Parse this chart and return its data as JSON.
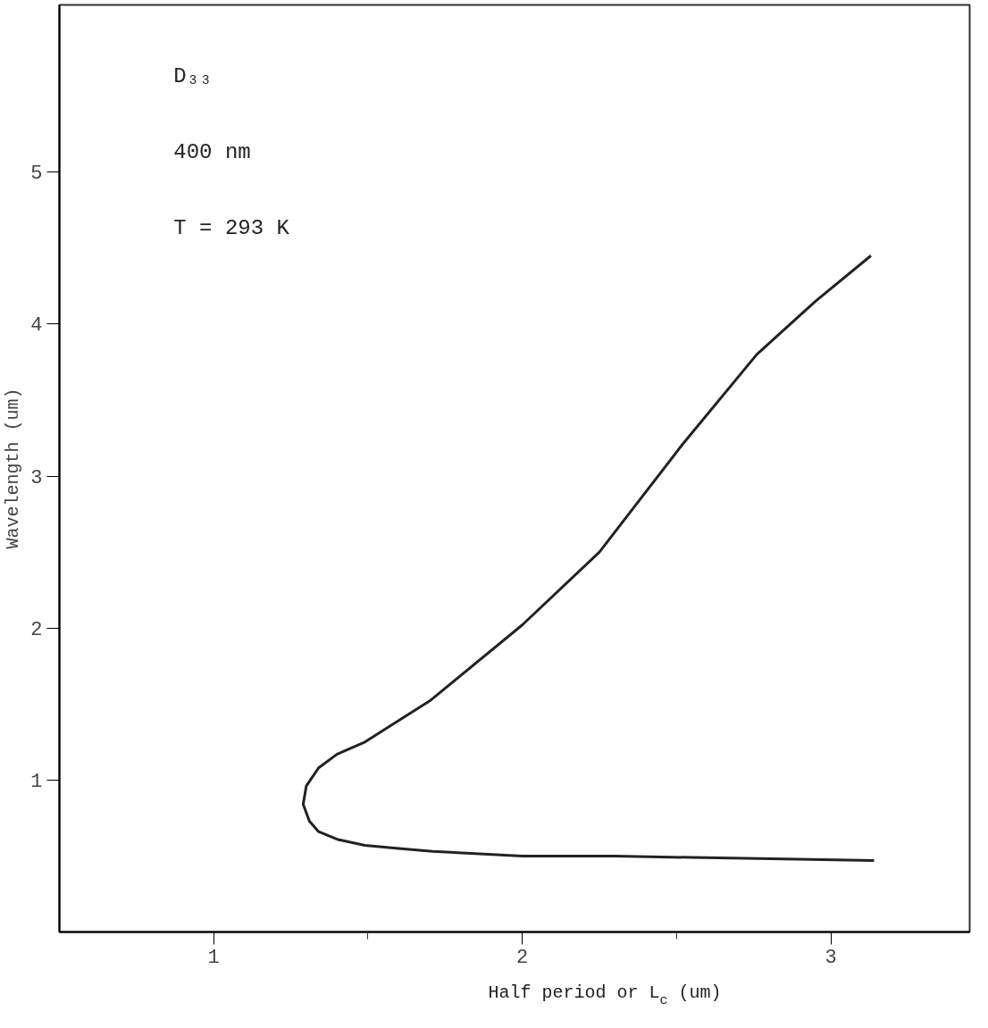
{
  "chart_data": {
    "type": "line",
    "xlabel": "Half period or L$_{c}$ (um)",
    "ylabel": "Wavelength (um)",
    "annotations": [
      "D₃₃",
      "400 nm",
      "T = 293 K"
    ],
    "xlim": [
      0.5,
      3.45
    ],
    "ylim": [
      0,
      6.1
    ],
    "xticks": [
      1,
      {
        "value": 1.5,
        "label": null
      },
      2,
      {
        "value": 2.5,
        "label": null
      },
      3
    ],
    "yticks": [
      1,
      2,
      3,
      4,
      5
    ],
    "grid": false,
    "marker": "none",
    "line_style": "solid",
    "series": [
      {
        "color": "#222222",
        "x": [
          3.13,
          2.95,
          2.76,
          2.52,
          2.25,
          2.0,
          1.7,
          1.49,
          1.4,
          1.34,
          1.3,
          1.29,
          1.31,
          1.34,
          1.4,
          1.49,
          1.6,
          1.71,
          2.0,
          2.3,
          2.55,
          2.85,
          3.14
        ],
        "values": [
          4.45,
          4.15,
          3.8,
          3.21,
          2.5,
          2.02,
          1.52,
          1.25,
          1.17,
          1.08,
          0.96,
          0.84,
          0.73,
          0.66,
          0.61,
          0.57,
          0.55,
          0.53,
          0.5,
          0.5,
          0.49,
          0.48,
          0.47
        ]
      }
    ]
  }
}
